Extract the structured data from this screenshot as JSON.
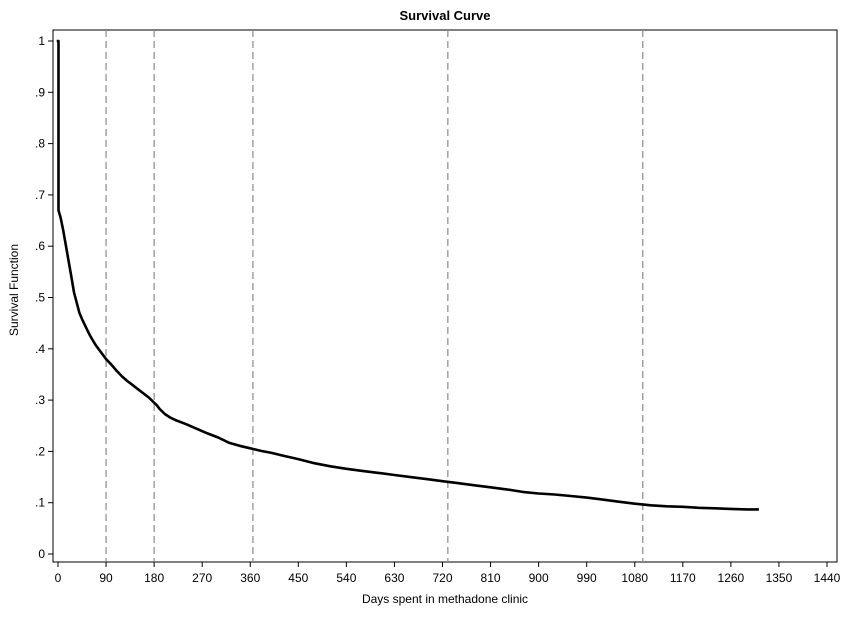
{
  "chart_data": {
    "type": "line",
    "title": "Survival Curve",
    "xlabel": "Days spent in methadone clinic",
    "ylabel": "Survival Function",
    "xlim": [
      0,
      1440
    ],
    "ylim": [
      0,
      1
    ],
    "x_ticks": [
      0,
      90,
      180,
      270,
      360,
      450,
      540,
      630,
      720,
      810,
      900,
      990,
      1080,
      1170,
      1260,
      1350,
      1440
    ],
    "x_tick_labels": [
      "0",
      "90",
      "180",
      "270",
      "360",
      "450",
      "540",
      "630",
      "720",
      "810",
      "900",
      "990",
      "1080",
      "1170",
      "1260",
      "1350",
      "1440"
    ],
    "y_ticks": [
      0,
      0.1,
      0.2,
      0.3,
      0.4,
      0.5,
      0.6,
      0.7,
      0.8,
      0.9,
      1
    ],
    "y_tick_labels": [
      "0",
      ".1",
      ".2",
      ".3",
      ".4",
      ".5",
      ".6",
      ".7",
      ".8",
      ".9",
      "1"
    ],
    "reference_lines_x": [
      90,
      180,
      365,
      730,
      1095
    ],
    "grid": false,
    "line_color": "#000000",
    "reference_line_color": "#8a8a8a",
    "series": [
      {
        "x": [
          0,
          1,
          1,
          5,
          10,
          15,
          20,
          25,
          30,
          35,
          40,
          45,
          50,
          55,
          60,
          65,
          70,
          80,
          90,
          100,
          110,
          120,
          130,
          140,
          150,
          160,
          170,
          180,
          185,
          190,
          200,
          210,
          220,
          240,
          260,
          280,
          300,
          320,
          340,
          360,
          380,
          400,
          420,
          450,
          480,
          510,
          540,
          570,
          600,
          630,
          660,
          690,
          720,
          750,
          780,
          810,
          840,
          870,
          900,
          930,
          960,
          990,
          1020,
          1050,
          1080,
          1110,
          1140,
          1170,
          1200,
          1230,
          1260,
          1290,
          1300,
          1310
        ],
        "y": [
          1.0,
          1.0,
          0.67,
          0.655,
          0.63,
          0.6,
          0.57,
          0.54,
          0.51,
          0.49,
          0.47,
          0.458,
          0.447,
          0.436,
          0.426,
          0.417,
          0.408,
          0.394,
          0.38,
          0.369,
          0.357,
          0.346,
          0.337,
          0.329,
          0.321,
          0.313,
          0.305,
          0.295,
          0.29,
          0.283,
          0.273,
          0.266,
          0.261,
          0.253,
          0.244,
          0.235,
          0.227,
          0.217,
          0.211,
          0.206,
          0.201,
          0.197,
          0.192,
          0.185,
          0.177,
          0.171,
          0.166,
          0.162,
          0.158,
          0.154,
          0.15,
          0.146,
          0.142,
          0.138,
          0.134,
          0.13,
          0.126,
          0.121,
          0.118,
          0.116,
          0.113,
          0.11,
          0.106,
          0.102,
          0.098,
          0.095,
          0.093,
          0.092,
          0.09,
          0.089,
          0.088,
          0.087,
          0.087,
          0.087
        ]
      }
    ]
  }
}
